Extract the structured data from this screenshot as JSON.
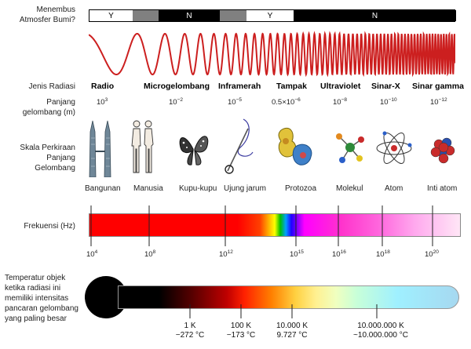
{
  "labels": {
    "penetrate": [
      "Menembus",
      "Atmosfer Bumi?"
    ],
    "radiation_type": "Jenis Radiasi",
    "wavelength": [
      "Panjang",
      "gelombang (m)"
    ],
    "scale": [
      "Skala Perkiraan",
      "Panjang Gelombang"
    ],
    "frequency": "Frekuensi (Hz)",
    "temperature": [
      "Temperatur objek",
      "ketika radiasi ini",
      "memiliki intensitas",
      "pancaran gelombang",
      "yang paling besar"
    ]
  },
  "atmosphere_bar": [
    "Y",
    "",
    "N",
    "",
    "Y",
    "N"
  ],
  "radiation_types": [
    "Radio",
    "Microgelombang",
    "Inframerah",
    "Tampak",
    "Ultraviolet",
    "Sinar-X",
    "Sinar gamma"
  ],
  "wavelengths": [
    {
      "base": "10",
      "exp": "3"
    },
    {
      "base": "10",
      "exp": "−2"
    },
    {
      "base": "10",
      "exp": "−5"
    },
    {
      "base": "0.5×10",
      "exp": "−6"
    },
    {
      "base": "10",
      "exp": "−8"
    },
    {
      "base": "10",
      "exp": "−10"
    },
    {
      "base": "10",
      "exp": "−12"
    }
  ],
  "scale_objects": [
    {
      "name": "Bangunan",
      "icon": "building-icon"
    },
    {
      "name": "Manusia",
      "icon": "humans-icon"
    },
    {
      "name": "Kupu-kupu",
      "icon": "butterfly-icon"
    },
    {
      "name": "Ujung jarum",
      "icon": "needle-icon"
    },
    {
      "name": "Protozoa",
      "icon": "protozoa-icon"
    },
    {
      "name": "Molekul",
      "icon": "molecule-icon"
    },
    {
      "name": "Atom",
      "icon": "atom-icon"
    },
    {
      "name": "Inti atom",
      "icon": "nucleus-icon"
    }
  ],
  "frequency_ticks": [
    {
      "base": "10",
      "exp": "4"
    },
    {
      "base": "10",
      "exp": "8"
    },
    {
      "base": "10",
      "exp": "12"
    },
    {
      "base": "10",
      "exp": "15"
    },
    {
      "base": "10",
      "exp": "16"
    },
    {
      "base": "10",
      "exp": "18"
    },
    {
      "base": "10",
      "exp": "20"
    }
  ],
  "temperatures": [
    {
      "k": "1 K",
      "c": "−272 °C"
    },
    {
      "k": "100 K",
      "c": "−173 °C"
    },
    {
      "k": "10.000 K",
      "c": "9.727 °C"
    },
    {
      "k": "10.000.000 K",
      "c": "~10.000.000 °C"
    }
  ],
  "colors": {
    "wave": "#cc1f1f",
    "bar_black": "#000000",
    "bar_gray": "#808080"
  }
}
